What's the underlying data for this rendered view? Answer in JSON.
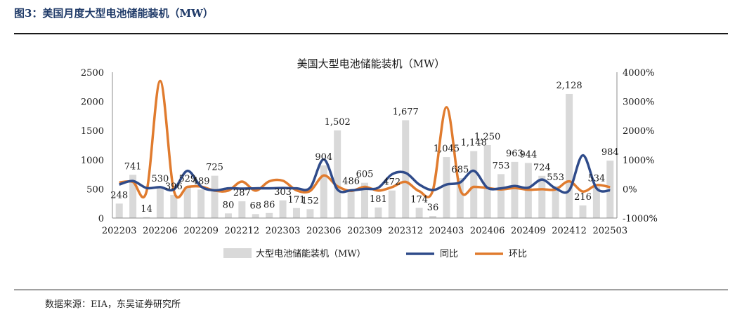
{
  "figure_label": "图3：美国月度大型电池储能装机（MW）",
  "source_note": "数据来源：EIA，东吴证券研究所",
  "colors": {
    "bar": "#d9d9d9",
    "yoy": "#2f4b8a",
    "mom": "#e07b2e",
    "axis": "#8c8c8c"
  },
  "chart_data": {
    "type": "bar",
    "title": "美国大型电池储能装机（MW）",
    "xlabel": "",
    "ylabel": "",
    "ylim": [
      0,
      2500
    ],
    "y_ticks": [
      "0",
      "500",
      "1000",
      "1500",
      "2000",
      "2500"
    ],
    "y2lim": [
      -1000,
      4000
    ],
    "y2_ticks": [
      "-1000%",
      "0%",
      "1000%",
      "2000%",
      "3000%",
      "4000%"
    ],
    "grid": false,
    "legend_position": "bottom",
    "x_tick_labels": [
      "202203",
      "202206",
      "202209",
      "202212",
      "202303",
      "202306",
      "202309",
      "202312",
      "202403",
      "202406",
      "202409",
      "202412",
      "202503"
    ],
    "categories": [
      "202203",
      "202204",
      "202205",
      "202206",
      "202207",
      "202208",
      "202209",
      "202210",
      "202211",
      "202212",
      "202301",
      "202302",
      "202303",
      "202304",
      "202305",
      "202306",
      "202307",
      "202308",
      "202309",
      "202310",
      "202311",
      "202312",
      "202401",
      "202402",
      "202403",
      "202404",
      "202405",
      "202406",
      "202407",
      "202408",
      "202409",
      "202410",
      "202411",
      "202412",
      "202501",
      "202502",
      "202503"
    ],
    "series": [
      {
        "name": "大型电池储能装机（MW）",
        "kind": "bar",
        "axis": "left",
        "values": [
          248,
          741,
          14,
          530,
          396,
          529,
          489,
          725,
          80,
          287,
          68,
          86,
          303,
          171,
          152,
          904,
          1502,
          486,
          605,
          181,
          472,
          1677,
          174,
          36,
          1045,
          685,
          1148,
          1250,
          753,
          963,
          944,
          724,
          553,
          2128,
          216,
          534,
          984
        ],
        "labels": [
          "248",
          "741",
          "14",
          "530",
          "396",
          "529",
          "489",
          "725",
          "80",
          "287",
          "68",
          "86",
          "303",
          "171",
          "152",
          "904",
          "1,502",
          "486",
          "605",
          "181",
          "472",
          "1,677",
          "174",
          "36",
          "1,045",
          "685",
          "1,148",
          "1,250",
          "753",
          "963",
          "944",
          "724",
          "553",
          "2,128",
          "216",
          "534",
          "984"
        ]
      },
      {
        "name": "同比",
        "kind": "line",
        "axis": "right",
        "unit": "%",
        "values": [
          150,
          270,
          30,
          60,
          -20,
          620,
          80,
          -50,
          20,
          10,
          20,
          20,
          30,
          20,
          40,
          1010,
          -20,
          -50,
          0,
          40,
          500,
          550,
          150,
          -40,
          150,
          220,
          620,
          40,
          20,
          100,
          40,
          320,
          20,
          -50,
          1150,
          20,
          -50
        ]
      },
      {
        "name": "环比",
        "kind": "line",
        "axis": "right",
        "unit": "%",
        "values": [
          220,
          240,
          -90,
          3700,
          -50,
          70,
          80,
          -60,
          -60,
          250,
          -60,
          260,
          280,
          -50,
          -70,
          460,
          90,
          -70,
          70,
          -60,
          60,
          240,
          -80,
          -50,
          2800,
          -20,
          70,
          30,
          -20,
          30,
          -30,
          -10,
          -20,
          260,
          -90,
          130,
          60
        ]
      }
    ]
  }
}
